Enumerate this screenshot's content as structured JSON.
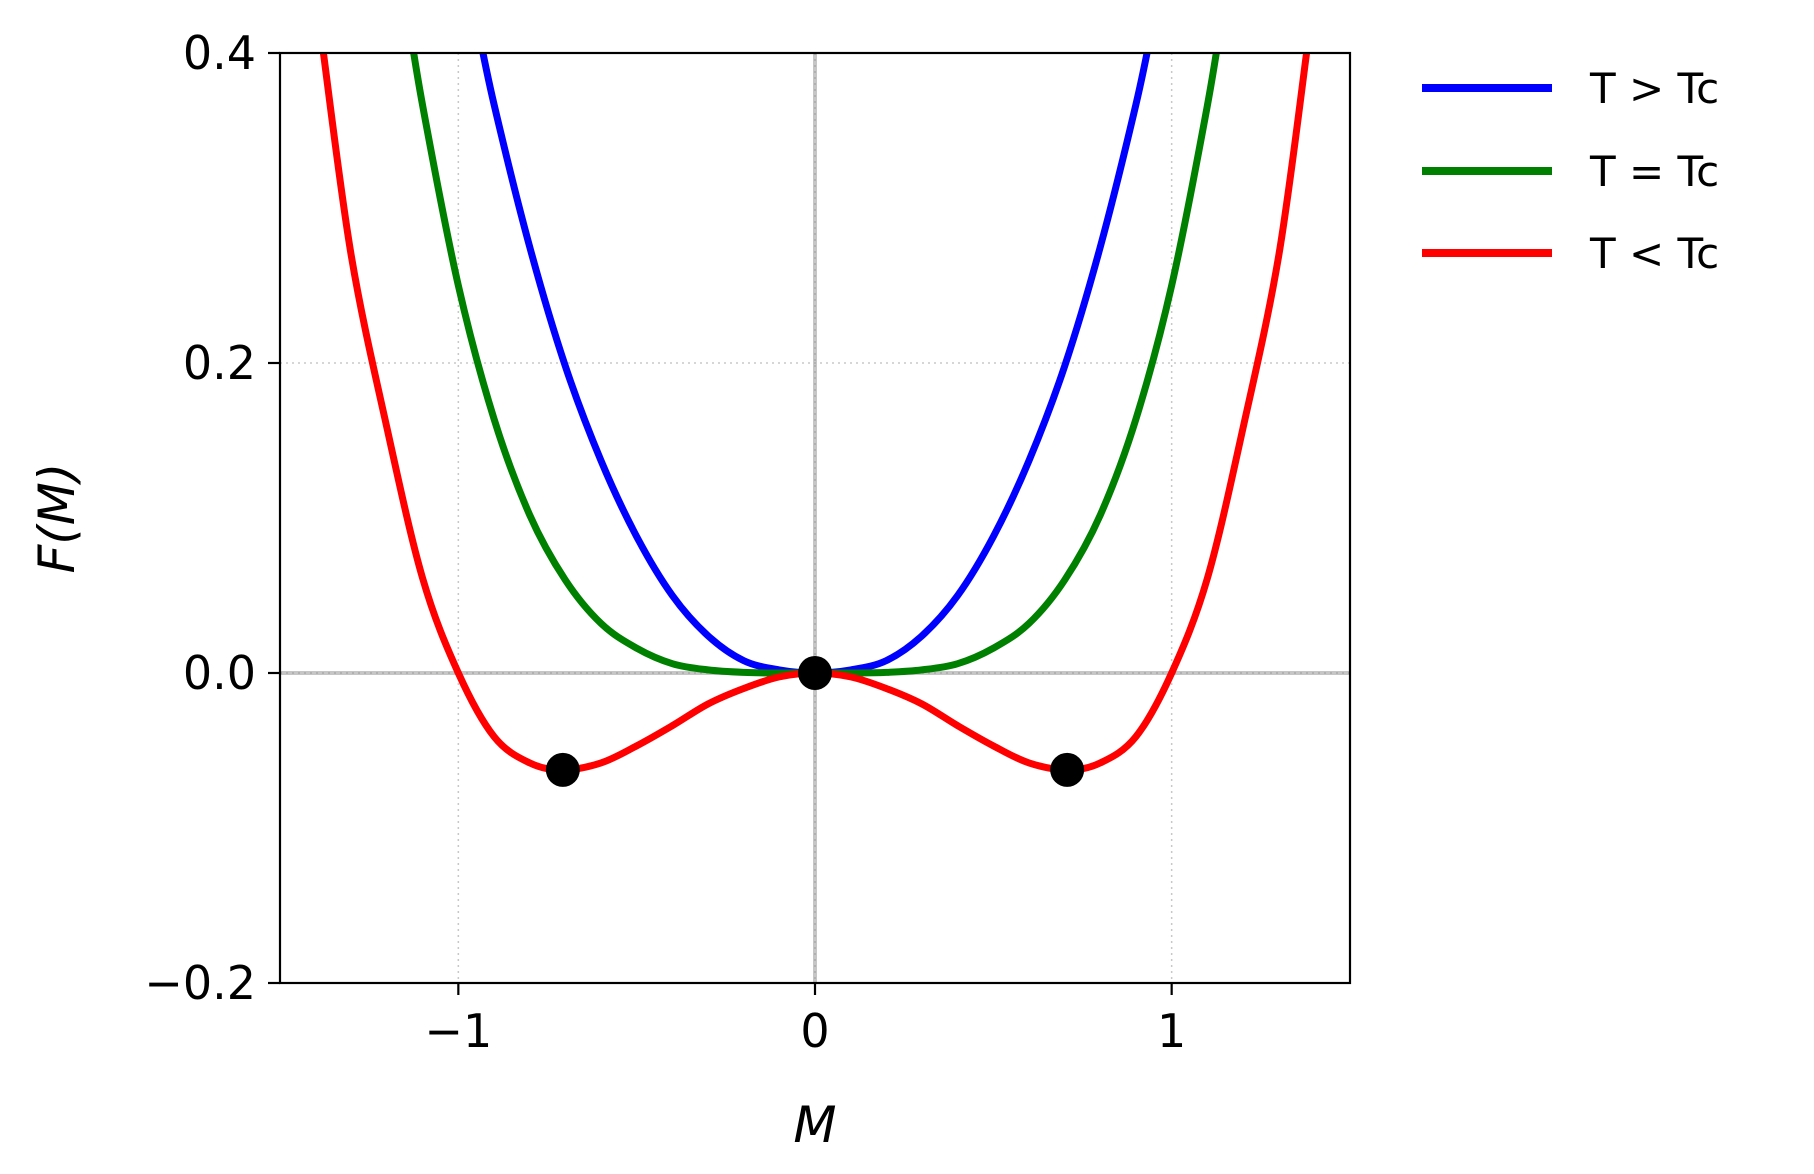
{
  "chart_data": {
    "type": "line",
    "xlabel": "M",
    "ylabel": "F(M)",
    "xlim": [
      -1.5,
      1.5
    ],
    "ylim": [
      -0.2,
      0.4
    ],
    "xticks": [
      -1,
      0,
      1
    ],
    "xtick_labels": [
      "−1",
      "0",
      "1"
    ],
    "yticks": [
      -0.2,
      0.0,
      0.2,
      0.4
    ],
    "ytick_labels": [
      "−0.2",
      "0.0",
      "0.2",
      "0.4"
    ],
    "grid": true,
    "legend_position": "outside-top-right",
    "series": [
      {
        "name": "T > Tc",
        "color": "#0000ff",
        "x": [
          -0.95,
          -0.9,
          -0.8,
          -0.7,
          -0.6,
          -0.5,
          -0.4,
          -0.3,
          -0.2,
          -0.1,
          0.0,
          0.1,
          0.2,
          0.3,
          0.4,
          0.5,
          0.6,
          0.7,
          0.8,
          0.9,
          0.95
        ],
        "y": [
          0.422,
          0.367,
          0.275,
          0.198,
          0.137,
          0.088,
          0.05,
          0.024,
          0.008,
          0.002,
          0.0,
          0.002,
          0.008,
          0.024,
          0.05,
          0.088,
          0.137,
          0.198,
          0.275,
          0.367,
          0.422
        ]
      },
      {
        "name": "T = Tc",
        "color": "#008000",
        "x": [
          -1.15,
          -1.1,
          -1.0,
          -0.9,
          -0.8,
          -0.7,
          -0.6,
          -0.5,
          -0.4,
          -0.3,
          -0.2,
          -0.1,
          0.0,
          0.1,
          0.2,
          0.3,
          0.4,
          0.5,
          0.6,
          0.7,
          0.8,
          0.9,
          1.0,
          1.1,
          1.15
        ],
        "y": [
          0.437,
          0.366,
          0.25,
          0.164,
          0.102,
          0.06,
          0.032,
          0.016,
          0.006,
          0.002,
          0.0004,
          0.0,
          0.0,
          0.0,
          0.0004,
          0.002,
          0.006,
          0.016,
          0.032,
          0.06,
          0.102,
          0.164,
          0.25,
          0.366,
          0.437
        ]
      },
      {
        "name": "T < Tc",
        "color": "#ff0000",
        "x": [
          -1.38,
          -1.3,
          -1.2,
          -1.1,
          -1.0,
          -0.9,
          -0.8,
          -0.707,
          -0.6,
          -0.5,
          -0.4,
          -0.3,
          -0.2,
          -0.1,
          0.0,
          0.1,
          0.2,
          0.3,
          0.4,
          0.5,
          0.6,
          0.707,
          0.8,
          0.9,
          1.0,
          1.1,
          1.2,
          1.3,
          1.38
        ],
        "y": [
          0.403,
          0.269,
          0.158,
          0.061,
          0.0,
          -0.041,
          -0.058,
          -0.0625,
          -0.058,
          -0.047,
          -0.034,
          -0.02,
          -0.01,
          -0.0025,
          0.0,
          -0.0025,
          -0.01,
          -0.02,
          -0.034,
          -0.047,
          -0.058,
          -0.0625,
          -0.058,
          -0.041,
          0.0,
          0.061,
          0.158,
          0.269,
          0.403
        ]
      }
    ],
    "markers": {
      "color": "#000000",
      "points": [
        {
          "x": -0.707,
          "y": -0.0625
        },
        {
          "x": 0.0,
          "y": 0.0
        },
        {
          "x": 0.707,
          "y": -0.0625
        }
      ]
    }
  },
  "legend": {
    "entries": [
      {
        "label": "T > Tc",
        "color": "#0000ff"
      },
      {
        "label": "T = Tc",
        "color": "#008000"
      },
      {
        "label": "T < Tc",
        "color": "#ff0000"
      }
    ]
  }
}
